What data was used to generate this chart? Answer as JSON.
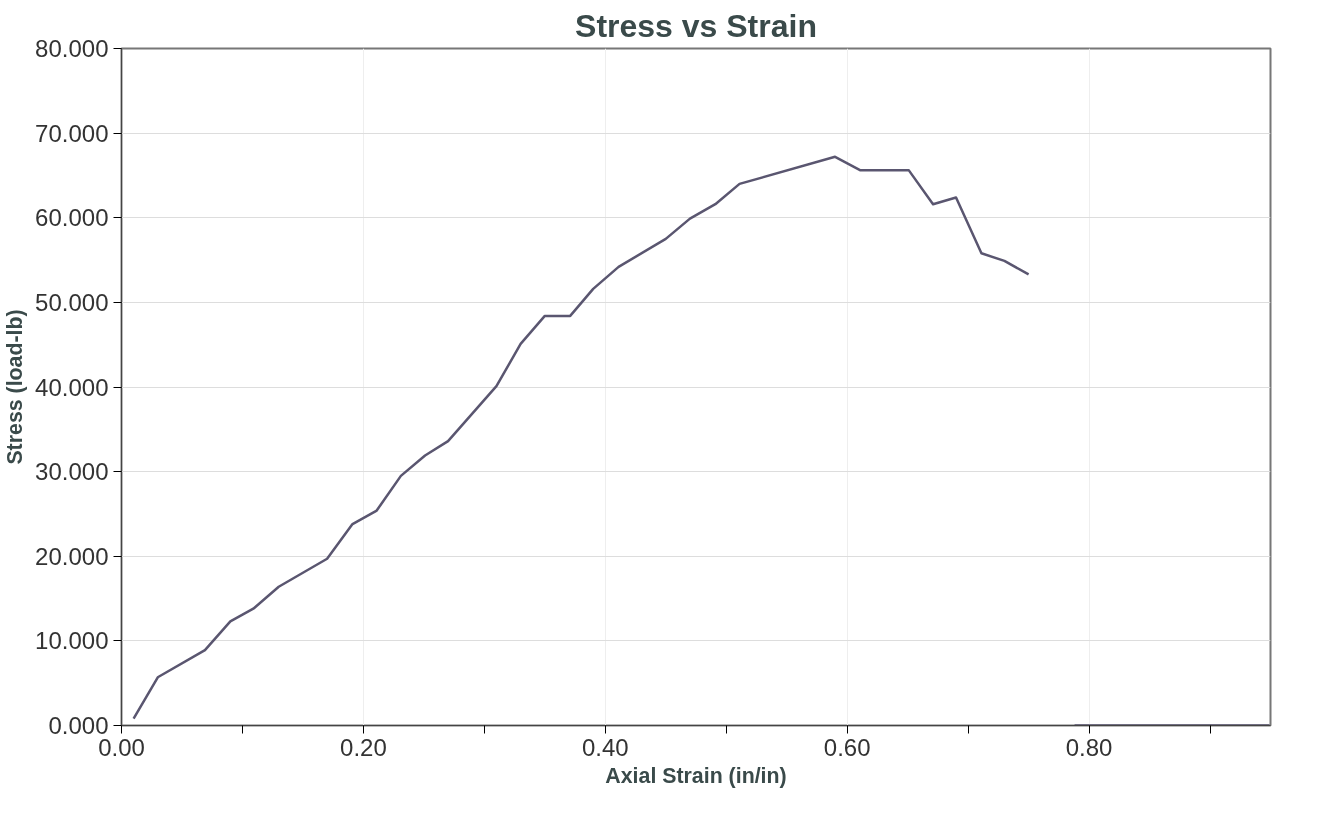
{
  "chart_data": {
    "type": "line",
    "title": "Stress vs Strain",
    "xlabel": "Axial Strain (in/in)",
    "ylabel": "Stress (load-lb)",
    "x": [
      0.01,
      0.03,
      0.069,
      0.09,
      0.109,
      0.13,
      0.17,
      0.191,
      0.211,
      0.231,
      0.251,
      0.27,
      0.31,
      0.33,
      0.35,
      0.371,
      0.39,
      0.411,
      0.45,
      0.47,
      0.491,
      0.511,
      0.59,
      0.611,
      0.651,
      0.671,
      0.69,
      0.711,
      0.73,
      0.75,
      0.77,
      0.788,
      0.949
    ],
    "series": [
      {
        "color": "#5a5670",
        "values": [
          0.8,
          5.7,
          8.9,
          12.3,
          13.8,
          16.4,
          19.7,
          23.8,
          25.4,
          29.5,
          31.9,
          33.6,
          40.1,
          45.1,
          48.4,
          48.4,
          51.6,
          54.2,
          57.5,
          59.9,
          61.6,
          64.0,
          67.2,
          65.6,
          65.6,
          61.6,
          62.4,
          55.8,
          54.9,
          53.3,
          null,
          0,
          0
        ]
      }
    ],
    "xlim": [
      0,
      0.95
    ],
    "ylim": [
      0,
      80
    ],
    "xticks": [
      {
        "value": 0,
        "label": "0.00"
      },
      {
        "value": 0.1,
        "label": null
      },
      {
        "value": 0.2,
        "label": "0.20"
      },
      {
        "value": 0.3,
        "label": null
      },
      {
        "value": 0.4,
        "label": "0.40"
      },
      {
        "value": 0.5,
        "label": null
      },
      {
        "value": 0.6,
        "label": "0.60"
      },
      {
        "value": 0.7,
        "label": null
      },
      {
        "value": 0.8,
        "label": "0.80"
      },
      {
        "value": 0.9,
        "label": null
      }
    ],
    "yticks": [
      {
        "value": 0,
        "label": "0.000"
      },
      {
        "value": 10,
        "label": "10.000"
      },
      {
        "value": 20,
        "label": "20.000"
      },
      {
        "value": 30,
        "label": "30.000"
      },
      {
        "value": 40,
        "label": "40.000"
      },
      {
        "value": 50,
        "label": "50.000"
      },
      {
        "value": 60,
        "label": "60.000"
      },
      {
        "value": 70,
        "label": "70.000"
      },
      {
        "value": 80,
        "label": "80.000"
      }
    ],
    "grid": true,
    "marker": "none",
    "line_style": "solid"
  }
}
